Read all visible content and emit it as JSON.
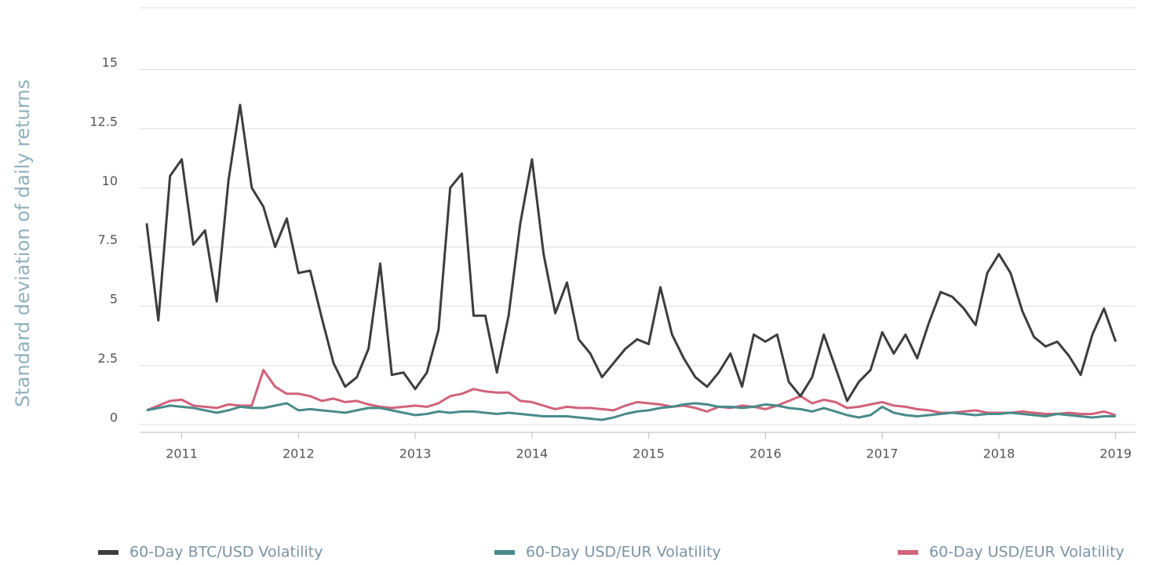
{
  "chart_data": {
    "type": "line",
    "y_label": "Standard deviation of daily returns",
    "x": [
      2010.7,
      2010.8,
      2010.9,
      2011.0,
      2011.1,
      2011.2,
      2011.3,
      2011.4,
      2011.5,
      2011.6,
      2011.7,
      2011.8,
      2011.9,
      2012.0,
      2012.1,
      2012.2,
      2012.3,
      2012.4,
      2012.5,
      2012.6,
      2012.7,
      2012.8,
      2012.9,
      2013.0,
      2013.1,
      2013.2,
      2013.3,
      2013.4,
      2013.5,
      2013.6,
      2013.7,
      2013.8,
      2013.9,
      2014.0,
      2014.1,
      2014.2,
      2014.3,
      2014.4,
      2014.5,
      2014.6,
      2014.7,
      2014.8,
      2014.9,
      2015.0,
      2015.1,
      2015.2,
      2015.3,
      2015.4,
      2015.5,
      2015.6,
      2015.7,
      2015.8,
      2015.9,
      2016.0,
      2016.1,
      2016.2,
      2016.3,
      2016.4,
      2016.5,
      2016.6,
      2016.7,
      2016.8,
      2016.9,
      2017.0,
      2017.1,
      2017.2,
      2017.3,
      2017.4,
      2017.5,
      2017.6,
      2017.7,
      2017.8,
      2017.9,
      2018.0,
      2018.1,
      2018.2,
      2018.3,
      2018.4,
      2018.5,
      2018.6,
      2018.7,
      2018.8,
      2018.9,
      2019.0
    ],
    "series": [
      {
        "name": "60-Day BTC/USD Volatility",
        "color": "#3d3d3d",
        "values": [
          8.5,
          4.4,
          10.5,
          11.2,
          7.6,
          8.2,
          5.2,
          10.3,
          13.5,
          10.0,
          9.2,
          7.5,
          8.7,
          6.4,
          6.5,
          4.5,
          2.6,
          1.6,
          2.0,
          3.2,
          6.8,
          2.1,
          2.2,
          1.5,
          2.2,
          4.0,
          10.0,
          10.6,
          4.6,
          4.6,
          2.2,
          4.6,
          8.5,
          11.2,
          7.2,
          4.7,
          6.0,
          3.6,
          3.0,
          2.0,
          2.6,
          3.2,
          3.6,
          3.4,
          5.8,
          3.8,
          2.8,
          2.0,
          1.6,
          2.2,
          3.0,
          1.6,
          3.8,
          3.5,
          3.8,
          1.8,
          1.2,
          2.0,
          3.8,
          2.4,
          1.0,
          1.8,
          2.3,
          3.9,
          3.0,
          3.8,
          2.8,
          4.3,
          5.6,
          5.4,
          4.9,
          4.2,
          6.4,
          7.2,
          6.4,
          4.8,
          3.7,
          3.3,
          3.5,
          2.9,
          2.1,
          3.8,
          4.9,
          3.5
        ]
      },
      {
        "name": "60-Day USD/EUR Volatility",
        "color": "#4a8a8a",
        "values": [
          0.6,
          0.7,
          0.8,
          0.75,
          0.7,
          0.6,
          0.5,
          0.6,
          0.75,
          0.7,
          0.7,
          0.8,
          0.9,
          0.6,
          0.65,
          0.6,
          0.55,
          0.5,
          0.6,
          0.7,
          0.7,
          0.6,
          0.5,
          0.4,
          0.45,
          0.55,
          0.5,
          0.55,
          0.55,
          0.5,
          0.45,
          0.5,
          0.45,
          0.4,
          0.35,
          0.35,
          0.35,
          0.3,
          0.25,
          0.2,
          0.3,
          0.45,
          0.55,
          0.6,
          0.7,
          0.75,
          0.85,
          0.9,
          0.85,
          0.75,
          0.75,
          0.7,
          0.75,
          0.85,
          0.8,
          0.7,
          0.65,
          0.55,
          0.7,
          0.55,
          0.4,
          0.3,
          0.4,
          0.75,
          0.5,
          0.4,
          0.35,
          0.4,
          0.45,
          0.5,
          0.45,
          0.4,
          0.45,
          0.45,
          0.5,
          0.45,
          0.4,
          0.35,
          0.45,
          0.4,
          0.35,
          0.3,
          0.35,
          0.35
        ]
      },
      {
        "name": "60-Day USD/EUR Volatility",
        "color": "#d0637a",
        "values": [
          0.6,
          0.8,
          1.0,
          1.05,
          0.8,
          0.75,
          0.7,
          0.85,
          0.8,
          0.8,
          2.3,
          1.6,
          1.3,
          1.3,
          1.2,
          1.0,
          1.1,
          0.95,
          1.0,
          0.85,
          0.75,
          0.7,
          0.75,
          0.8,
          0.75,
          0.9,
          1.2,
          1.3,
          1.5,
          1.4,
          1.35,
          1.35,
          1.0,
          0.95,
          0.8,
          0.65,
          0.75,
          0.7,
          0.7,
          0.65,
          0.6,
          0.8,
          0.95,
          0.9,
          0.85,
          0.75,
          0.8,
          0.7,
          0.55,
          0.75,
          0.7,
          0.8,
          0.75,
          0.65,
          0.8,
          1.0,
          1.2,
          0.9,
          1.05,
          0.95,
          0.7,
          0.75,
          0.85,
          0.95,
          0.8,
          0.75,
          0.65,
          0.6,
          0.5,
          0.5,
          0.55,
          0.6,
          0.5,
          0.5,
          0.5,
          0.55,
          0.5,
          0.45,
          0.45,
          0.5,
          0.45,
          0.45,
          0.55,
          0.4
        ]
      }
    ],
    "xlim": [
      2010.64,
      2019.17
    ],
    "xticks": [
      2011,
      2012,
      2013,
      2014,
      2015,
      2016,
      2017,
      2018,
      2019
    ],
    "ylim": [
      -0.33,
      17.6
    ],
    "yticks": [
      0,
      2.5,
      5,
      7.5,
      10,
      12.5,
      15
    ],
    "grid": true,
    "legend": "bottom"
  }
}
